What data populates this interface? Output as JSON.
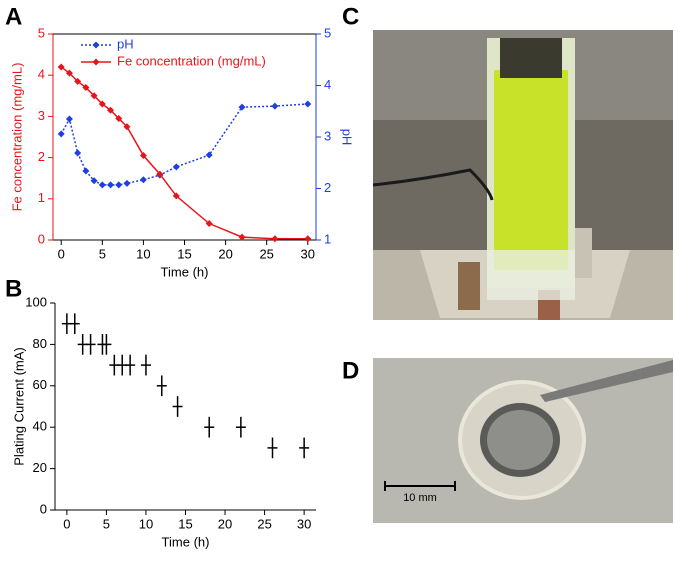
{
  "chart_data": [
    {
      "type": "line",
      "panel_label": "A",
      "x_label": "Time (h)",
      "y_label": "Fe concentration (mg/mL)",
      "y2_label": "pH",
      "xlim": [
        -1,
        31
      ],
      "xticks": [
        0,
        5,
        10,
        15,
        20,
        25,
        30
      ],
      "ylim": [
        0,
        5
      ],
      "yticks": [
        0,
        1,
        2,
        3,
        4,
        5
      ],
      "y2lim": [
        1,
        5
      ],
      "y2ticks": [
        1,
        2,
        3,
        4,
        5
      ],
      "legend": "upper left",
      "series": [
        {
          "name": "pH",
          "color": "#1f3fe0",
          "linestyle": "dotted",
          "axis": "y2",
          "x": [
            0,
            1,
            2,
            3,
            4,
            5,
            6,
            7,
            8,
            10,
            12,
            14,
            18,
            22,
            26,
            30
          ],
          "values": [
            3.06,
            3.35,
            2.69,
            2.34,
            2.15,
            2.07,
            2.07,
            2.07,
            2.1,
            2.17,
            2.26,
            2.42,
            2.65,
            3.58,
            3.6,
            3.64
          ]
        },
        {
          "name": "Fe concentration (mg/mL)",
          "color": "#e8141b",
          "linestyle": "solid",
          "x": [
            0,
            1,
            2,
            3,
            4,
            5,
            6,
            7,
            8,
            10,
            12,
            14,
            18,
            22,
            26,
            30
          ],
          "values": [
            4.2,
            4.05,
            3.85,
            3.7,
            3.5,
            3.3,
            3.15,
            2.95,
            2.75,
            2.05,
            1.6,
            1.07,
            0.4,
            0.07,
            0.03,
            0.03
          ]
        }
      ]
    },
    {
      "type": "scatter",
      "panel_label": "B",
      "x_label": "Time (h)",
      "y_label": "Plating Current (mA)",
      "xlim": [
        -1.5,
        31.5
      ],
      "xticks": [
        0,
        5,
        10,
        15,
        20,
        25,
        30
      ],
      "ylim": [
        0,
        100
      ],
      "yticks": [
        0,
        20,
        40,
        60,
        80,
        100
      ],
      "series": [
        {
          "color": "#000000",
          "x": [
            0,
            1,
            2,
            3,
            4.5,
            5,
            6,
            7,
            8,
            10,
            12,
            14,
            18,
            22,
            26,
            30
          ],
          "values": [
            90,
            90,
            80,
            80,
            80,
            80,
            70,
            70,
            70,
            70,
            60,
            50,
            40,
            40,
            30,
            30
          ],
          "errors": [
            5,
            5,
            5,
            5,
            5,
            5,
            5,
            5,
            5,
            5,
            5,
            5,
            5,
            5,
            5,
            5
          ]
        }
      ]
    }
  ],
  "photos": [
    {
      "label": "C"
    },
    {
      "label": "D",
      "scale_bar": "10 mm"
    }
  ]
}
